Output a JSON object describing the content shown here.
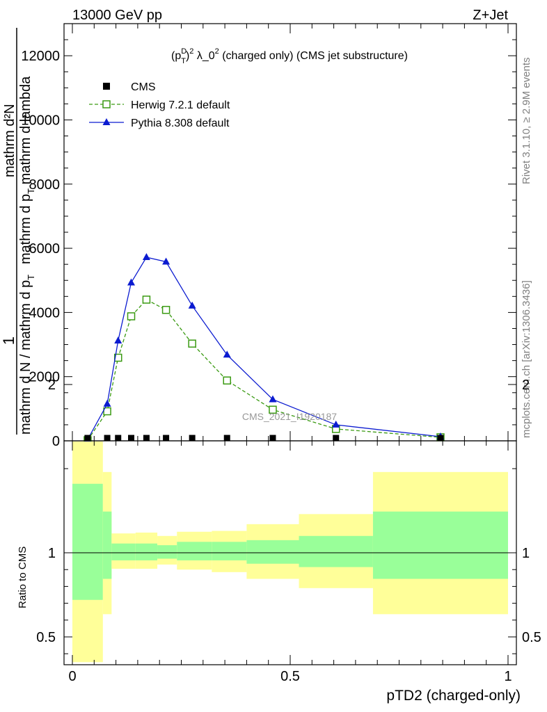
{
  "header": {
    "left": "13000 GeV pp",
    "right": "Z+Jet"
  },
  "side_labels": {
    "rivet": "Rivet 3.1.10, ≥ 2.9M events",
    "mcplots": "mcplots.cern.ch [arXiv:1306.3436]"
  },
  "watermark": "CMS_2021_I1920187",
  "chart_data": {
    "type": "line",
    "title": "(p_T^D)^2 λ_0^2 (charged only) (CMS jet substructure)",
    "title_parts": {
      "pre": "(p",
      "sup_d": "D",
      "sub_t": "T",
      "close": ")",
      "sup_2a": "2",
      "lambda": " λ_0",
      "sup_2b": "2",
      "rest": " (charged only) (CMS jet substructure)"
    },
    "ylabel_parts": {
      "one": "1",
      "denom_main": "mathrm d N / mathrm d p",
      "denom_sub": "T",
      "num": "mathrm d²N",
      "denom2": "mathrm d p",
      "denom2_sub": "T",
      "denom3": " mathrm d lambda"
    },
    "xlabel": "pTD2 (charged-only)",
    "ratio_ylabel": "Ratio to CMS",
    "xlim": [
      0,
      1
    ],
    "ylim": [
      0,
      13000
    ],
    "ratio_ylim": [
      0.35,
      2.3
    ],
    "x_ticks": [
      0,
      0.5,
      1
    ],
    "x_tick_labels": [
      "0",
      "0.5",
      "1"
    ],
    "y_ticks": [
      0,
      2000,
      4000,
      6000,
      8000,
      10000,
      12000
    ],
    "y_tick_labels": [
      "0",
      "2000",
      "4000",
      "6000",
      "8000",
      "10000",
      "12000"
    ],
    "ratio_y_ticks": [
      0.5,
      1,
      2
    ],
    "ratio_y_tick_labels": [
      "0.5",
      "1",
      "2"
    ],
    "legend_position": "top-left",
    "series": [
      {
        "name": "CMS",
        "style": "marker-square",
        "color": "#000000",
        "x": [
          0.035,
          0.08,
          0.105,
          0.135,
          0.17,
          0.215,
          0.275,
          0.355,
          0.46,
          0.605,
          0.845
        ],
        "y": [
          0,
          0,
          10,
          10,
          10,
          10,
          10,
          0,
          0,
          0,
          0
        ]
      },
      {
        "name": "Herwig 7.2.1 default",
        "style": "dashed-open-square",
        "color": "#3a9a12",
        "x": [
          0.035,
          0.08,
          0.105,
          0.135,
          0.17,
          0.215,
          0.275,
          0.355,
          0.46,
          0.605,
          0.845
        ],
        "y": [
          20,
          920,
          2590,
          3880,
          4400,
          4080,
          3030,
          1880,
          970,
          370,
          110
        ]
      },
      {
        "name": "Pythia 8.308 default",
        "style": "solid-filled-triangle",
        "color": "#0b1bd0",
        "x": [
          0.035,
          0.08,
          0.105,
          0.135,
          0.17,
          0.215,
          0.275,
          0.355,
          0.46,
          0.605,
          0.845
        ],
        "y": [
          40,
          1150,
          3120,
          4930,
          5720,
          5580,
          4210,
          2680,
          1290,
          500,
          130
        ]
      }
    ],
    "ratio_bands": {
      "bin_edges": [
        0.0,
        0.07,
        0.09,
        0.145,
        0.195,
        0.24,
        0.32,
        0.4,
        0.52,
        0.69,
        1.0
      ],
      "yellow_low": [
        0.35,
        0.635,
        0.905,
        0.905,
        0.93,
        0.9,
        0.885,
        0.845,
        0.79,
        0.635
      ],
      "yellow_high": [
        1.72,
        1.48,
        1.115,
        1.12,
        1.1,
        1.125,
        1.13,
        1.17,
        1.23,
        1.48
      ],
      "green_low": [
        0.72,
        0.845,
        0.955,
        0.955,
        0.965,
        0.955,
        0.955,
        0.935,
        0.915,
        0.845
      ],
      "green_high": [
        1.41,
        1.245,
        1.055,
        1.055,
        1.045,
        1.065,
        1.065,
        1.075,
        1.1,
        1.245
      ],
      "yellow_color": "#ffff99",
      "green_color": "#99ff99"
    }
  }
}
